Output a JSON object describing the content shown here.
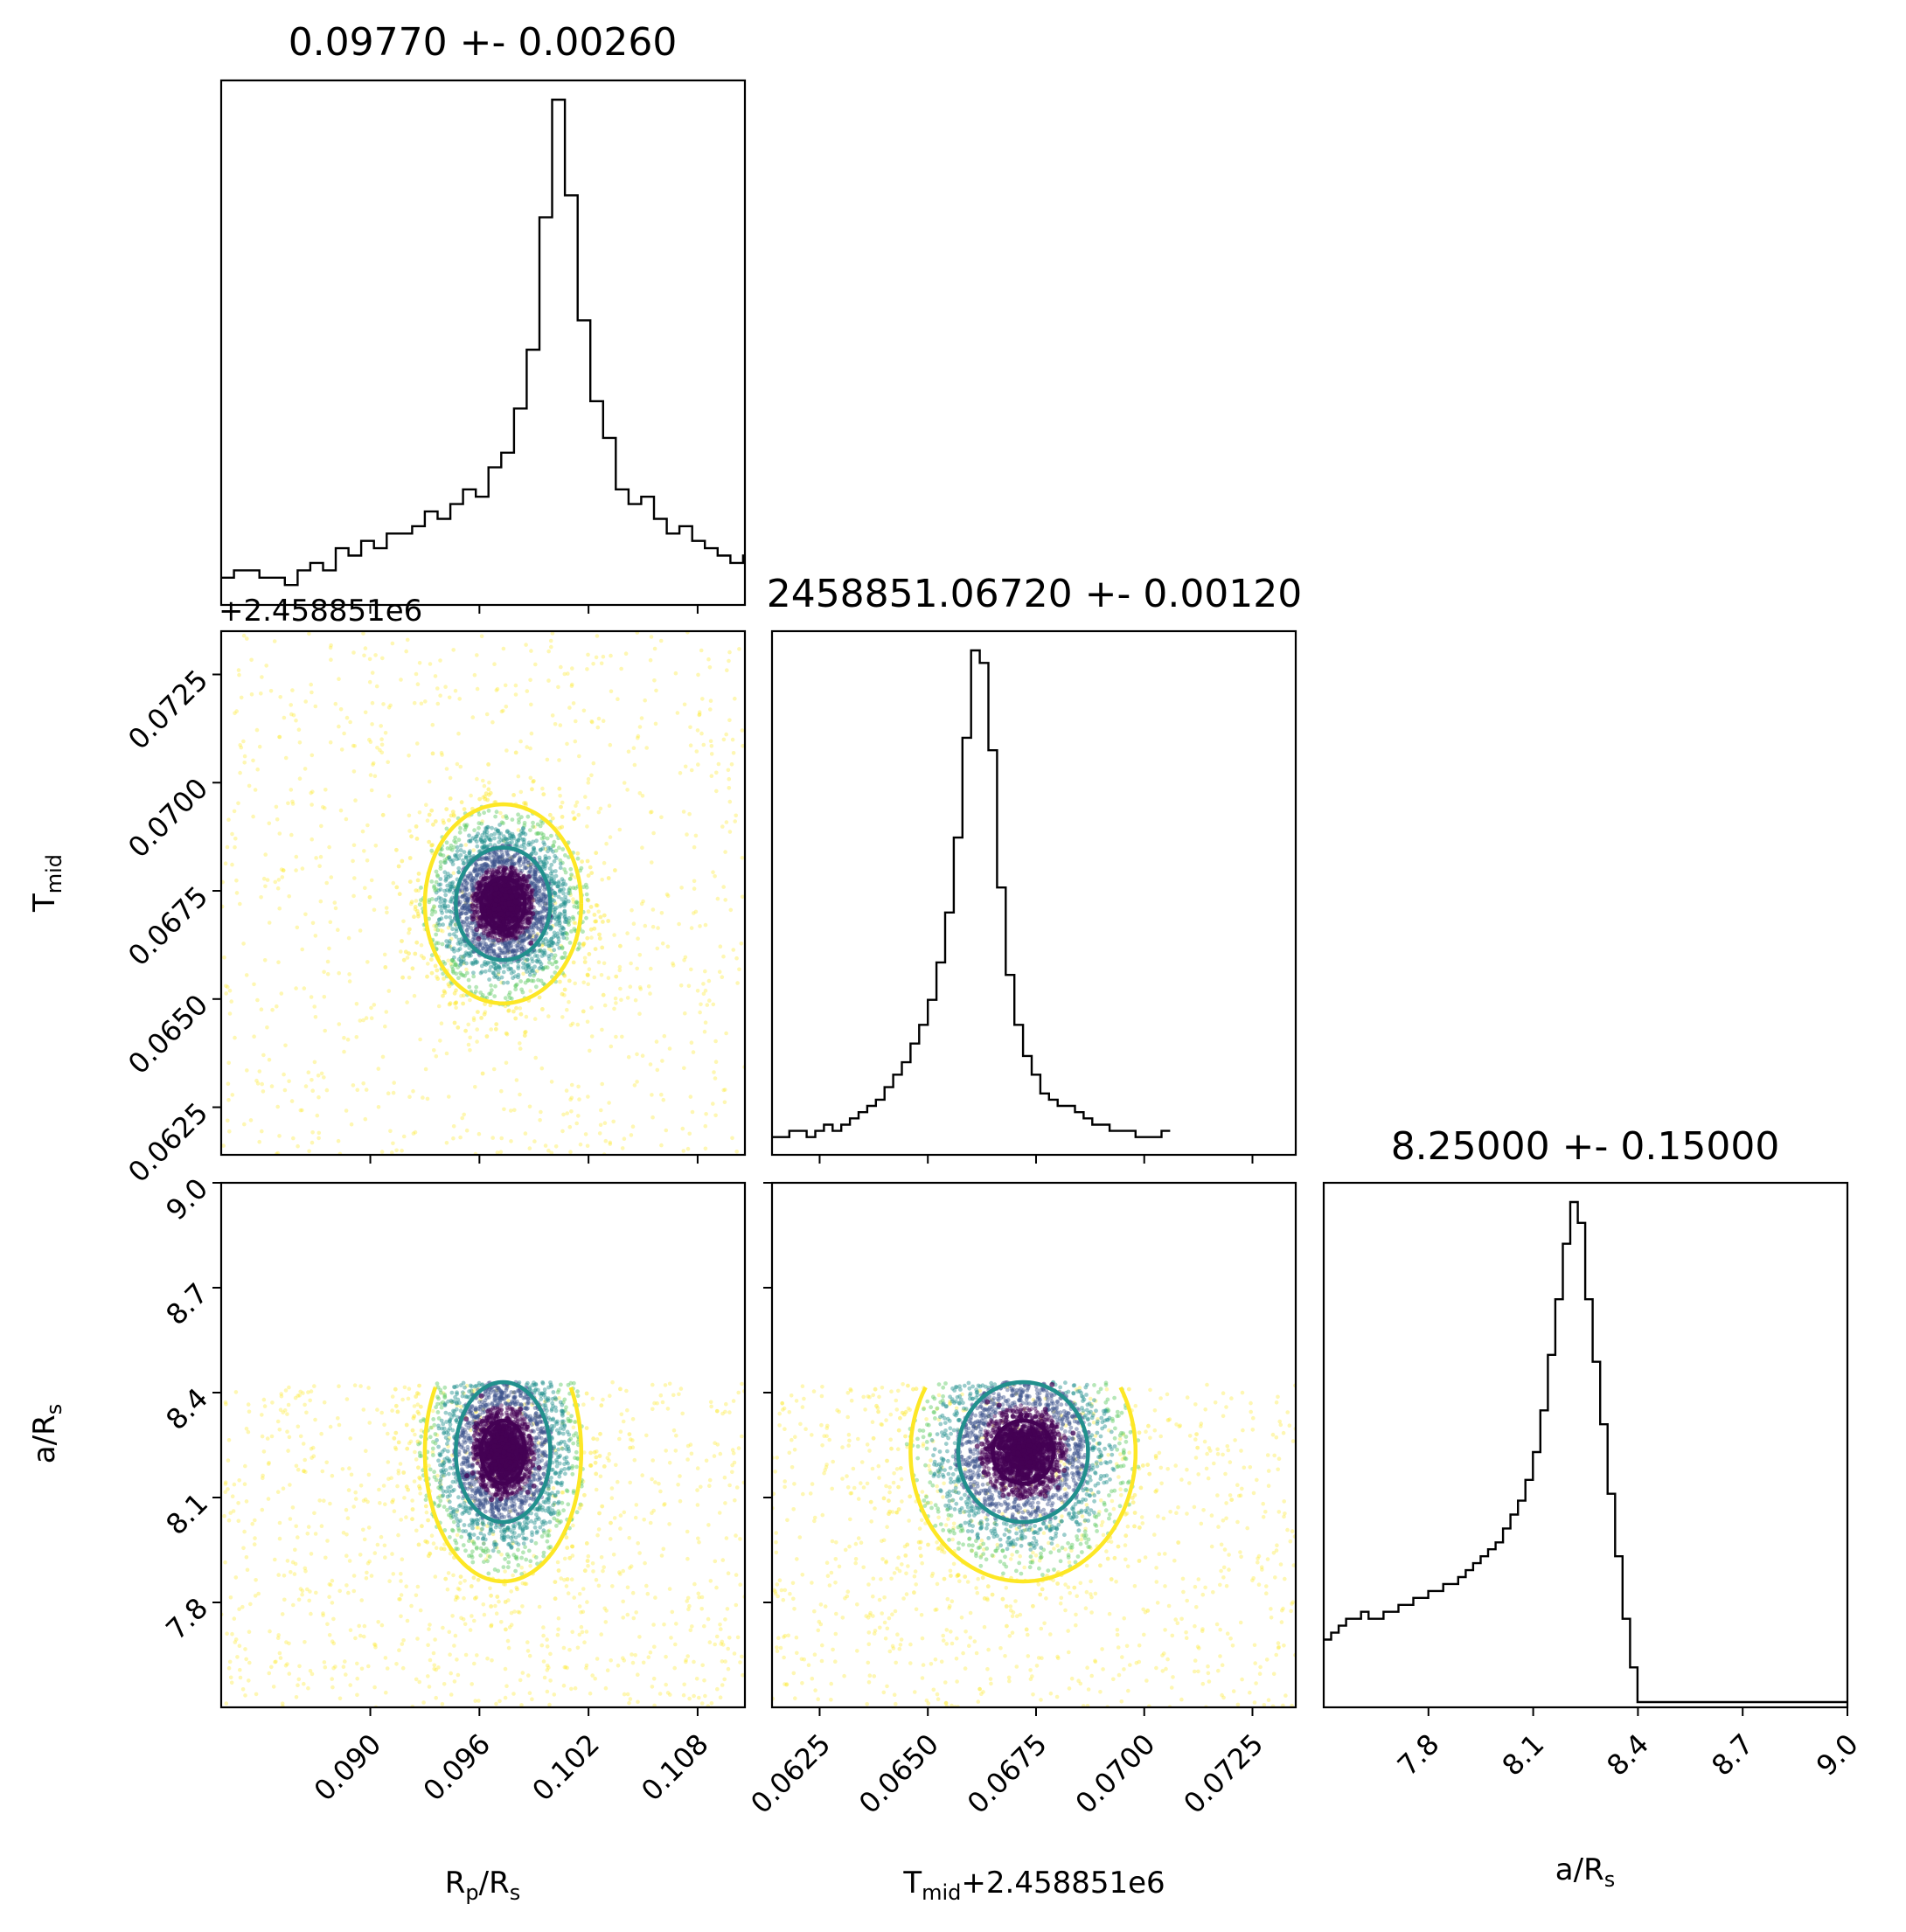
{
  "chart_data": {
    "type": "corner",
    "parameters": [
      {
        "key": "rp",
        "label_main": "R",
        "label_sub": "p",
        "label_mid": "/R",
        "label_sub2": "s",
        "title": "0.09770 +- 0.00260",
        "range": [
          0.0818,
          0.1106
        ],
        "ticks": [
          0.09,
          0.096,
          0.102,
          0.108
        ],
        "tick_labels": [
          "0.090",
          "0.096",
          "0.102",
          "0.108"
        ],
        "histogram": {
          "bin_edges_start": 0.0818,
          "bin_width": 0.0007,
          "counts": [
            3,
            4,
            4,
            3,
            3,
            2,
            4,
            5,
            4,
            7,
            6,
            8,
            7,
            9,
            9,
            10,
            12,
            11,
            13,
            15,
            14,
            18,
            20,
            26,
            34,
            52,
            68,
            55,
            38,
            27,
            22,
            15,
            13,
            14,
            11,
            9,
            10,
            8,
            7,
            6,
            5,
            6,
            4,
            4,
            3,
            3,
            2,
            3
          ]
        }
      },
      {
        "key": "tmid",
        "label_main": "T",
        "label_sub": "mid",
        "offset_text": "+2.458851e6",
        "title": "2458851.06720 +- 0.00120",
        "range": [
          0.0614,
          0.0735
        ],
        "ticks": [
          0.0625,
          0.065,
          0.0675,
          0.07,
          0.0725
        ],
        "tick_labels": [
          "0.0625",
          "0.0650",
          "0.0675",
          "0.0700",
          "0.0725"
        ],
        "histogram": {
          "bin_edges_start": 0.0614,
          "bin_width": 0.0002,
          "counts": [
            2,
            2,
            3,
            3,
            2,
            3,
            4,
            3,
            4,
            5,
            6,
            7,
            8,
            10,
            12,
            14,
            17,
            20,
            24,
            30,
            38,
            50,
            66,
            80,
            78,
            64,
            42,
            28,
            20,
            15,
            12,
            9,
            8,
            7,
            7,
            6,
            5,
            4,
            4,
            3,
            3,
            3,
            2,
            2,
            2,
            3
          ]
        }
      },
      {
        "key": "ars",
        "label_main": "a/R",
        "label_sub": "s",
        "title": "8.25000 +- 0.15000",
        "range": [
          7.5,
          9.0
        ],
        "ticks": [
          7.8,
          8.1,
          8.4,
          8.7,
          9.0
        ],
        "tick_labels": [
          "7.8",
          "8.1",
          "8.4",
          "8.7",
          "9.0"
        ],
        "histogram": {
          "bin_edges_start": 7.5,
          "bin_width": 0.0214,
          "counts": [
            9,
            10,
            11,
            12,
            12,
            13,
            12,
            12,
            13,
            13,
            14,
            14,
            15,
            15,
            16,
            16,
            17,
            17,
            18,
            19,
            20,
            21,
            22,
            23,
            25,
            27,
            29,
            32,
            36,
            42,
            50,
            58,
            66,
            72,
            69,
            58,
            49,
            40,
            30,
            21,
            12,
            5,
            0,
            0,
            0,
            0,
            0,
            0,
            0,
            0,
            0,
            0,
            0,
            0,
            0,
            0,
            0,
            0,
            0,
            0,
            0,
            0,
            0,
            0,
            0,
            0,
            0,
            0,
            0,
            0
          ]
        }
      }
    ],
    "pairs": [
      {
        "x": "rp",
        "y": "tmid",
        "center": [
          0.0973,
          0.0672
        ],
        "contour_radii": [
          [
            0.0012,
            0.0006
          ],
          [
            0.0026,
            0.0013
          ],
          [
            0.0043,
            0.0023
          ]
        ]
      },
      {
        "x": "rp",
        "y": "ars",
        "center": [
          0.0973,
          8.23
        ],
        "contour_radii": [
          [
            0.0012,
            0.09
          ],
          [
            0.0026,
            0.2
          ],
          [
            0.0043,
            0.37
          ]
        ]
      },
      {
        "x": "tmid",
        "y": "ars",
        "center": [
          0.0672,
          8.23
        ],
        "contour_radii": [
          [
            0.0007,
            0.09
          ],
          [
            0.0015,
            0.2
          ],
          [
            0.0026,
            0.37
          ]
        ]
      }
    ],
    "contour_colors": [
      "#440154",
      "#21908d",
      "#fde725"
    ],
    "scatter_colors": [
      "#440154",
      "#3b528b",
      "#21908d",
      "#5ec962",
      "#fde725"
    ],
    "grid": false,
    "legend": "none"
  }
}
